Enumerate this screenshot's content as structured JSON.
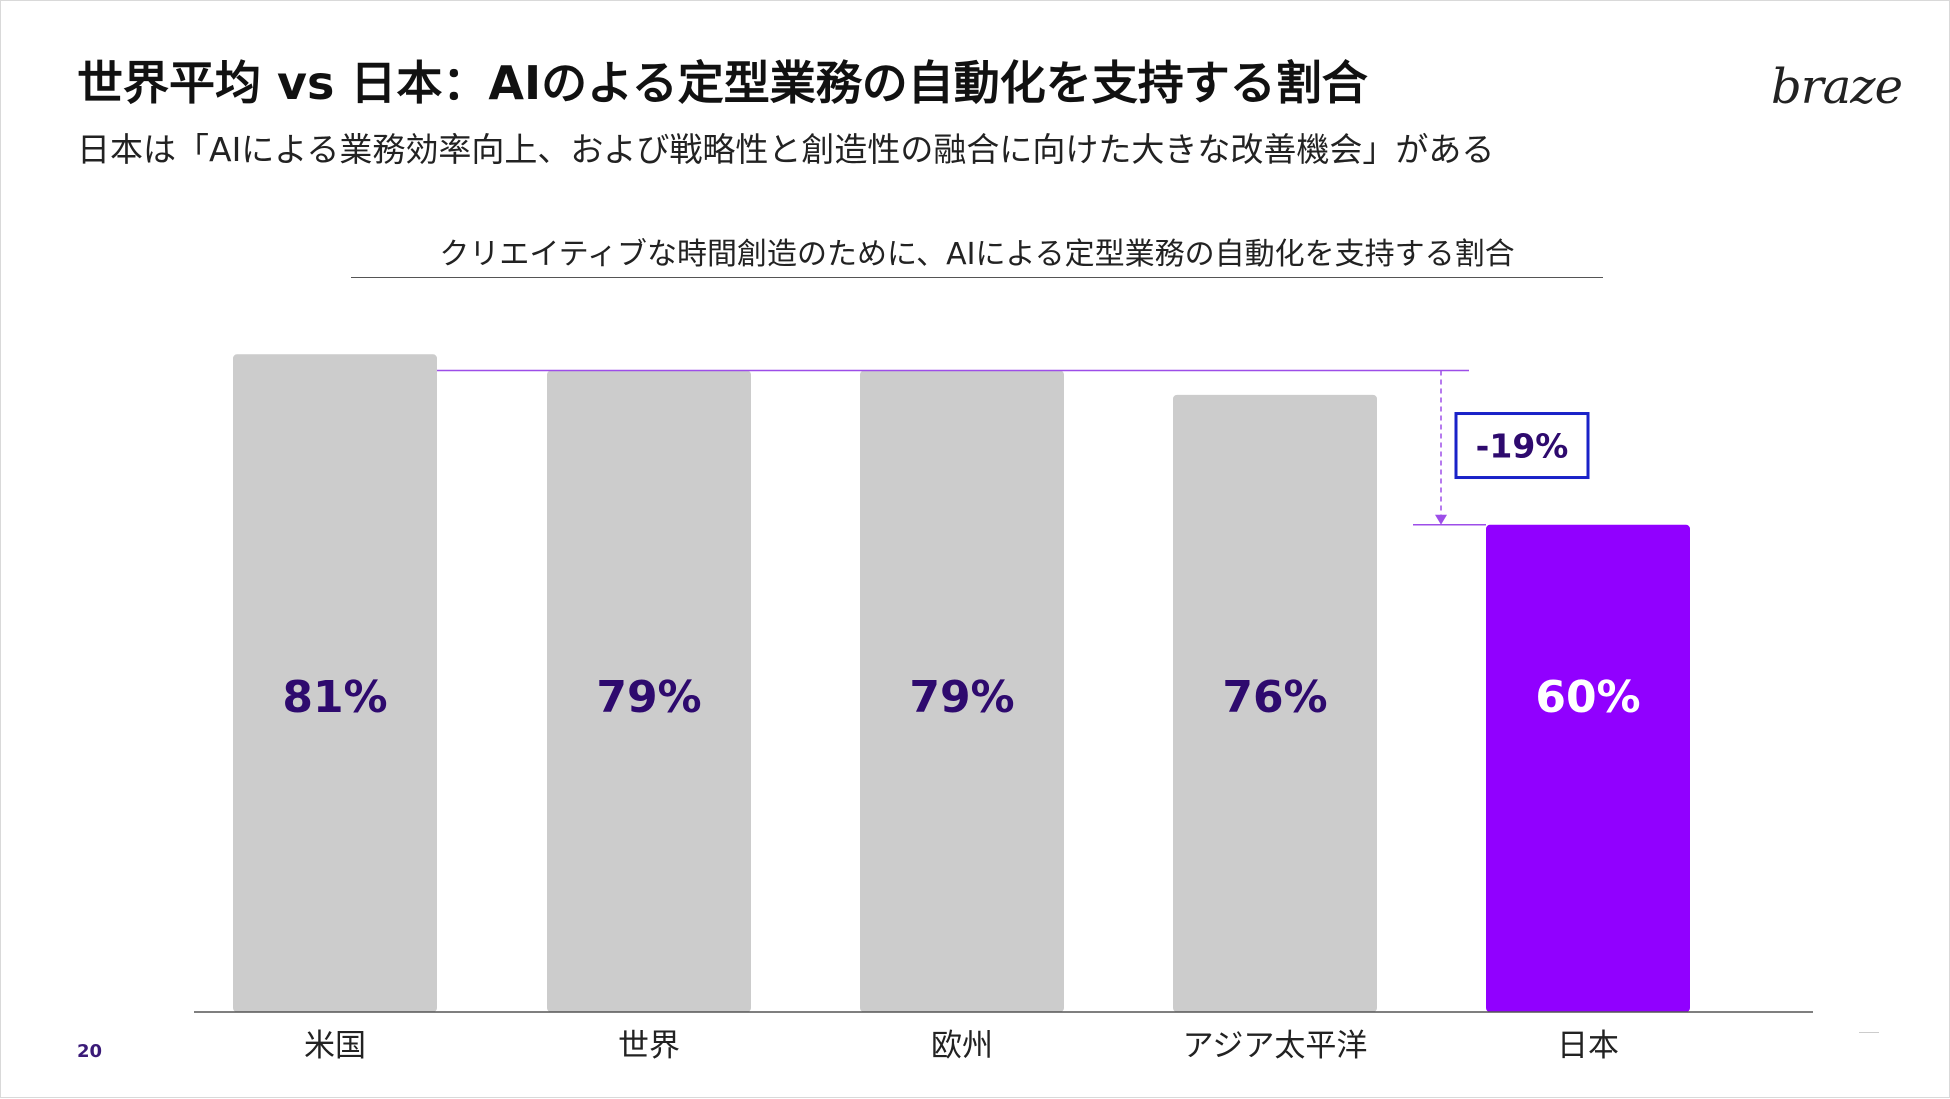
{
  "slide": {
    "title": "世界平均 vs 日本：AIのよる定型業務の自動化を支持する割合",
    "subtitle": "日本は「AIによる業務効率向上、および戦略性と創造性の融合に向けた大きな改善機会」がある",
    "logo_text": "braze",
    "page_number": "20"
  },
  "chart_data": {
    "type": "bar",
    "title": "クリエイティブな時間創造のために、AIによる定型業務の自動化を支持する割合",
    "xlabel": "",
    "ylabel": "",
    "ylim": [
      0,
      100
    ],
    "grid": false,
    "legend": "none",
    "categories": [
      "米国",
      "世界",
      "欧州",
      "アジア太平洋",
      "日本"
    ],
    "values": [
      81,
      79,
      79,
      76,
      60
    ],
    "data_labels": [
      "81%",
      "79%",
      "79%",
      "76%",
      "60%"
    ],
    "highlight_index": 4,
    "annotation": {
      "text": "-19%",
      "from_value": 79,
      "to_value": 60
    },
    "colors": {
      "bar": "#cccccc",
      "highlight": "#9100ff",
      "label": "#2e0a6e",
      "highlight_label": "#ffffff",
      "annotation_line": "#9d4ee8",
      "annotation_box": "#1a22c8",
      "annotation_text": "#2e0a6e",
      "baseline": "#555555"
    }
  }
}
